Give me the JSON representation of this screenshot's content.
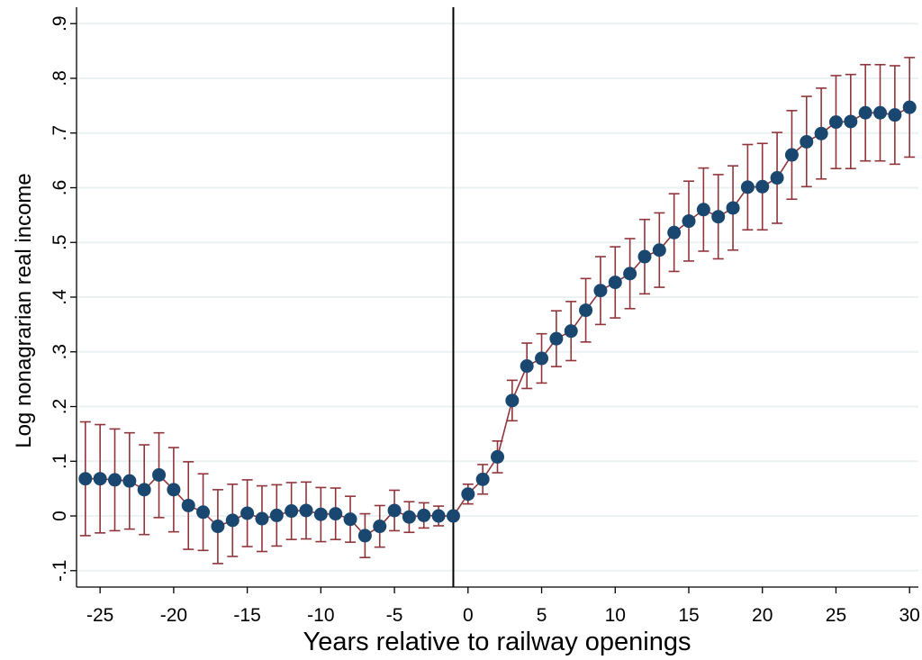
{
  "chart_data": {
    "type": "scatter",
    "xlabel": "Years relative to railway openings",
    "ylabel": "Log nonagrarian real income",
    "xlim": [
      -26.6,
      30.6
    ],
    "ylim": [
      -0.13,
      0.93
    ],
    "x_ticks": [
      -25,
      -20,
      -15,
      -10,
      -5,
      0,
      5,
      10,
      15,
      20,
      25,
      30
    ],
    "x_tick_labels": [
      "-25",
      "-20",
      "-15",
      "-10",
      "-5",
      "0",
      "5",
      "10",
      "15",
      "20",
      "25",
      "30"
    ],
    "y_ticks": [
      -0.1,
      0,
      0.1,
      0.2,
      0.3,
      0.4,
      0.5,
      0.6,
      0.7,
      0.8,
      0.9
    ],
    "y_tick_labels": [
      "-.1",
      "0",
      ".1",
      ".2",
      ".3",
      ".4",
      ".5",
      ".6",
      ".7",
      ".8",
      ".9"
    ],
    "grid": "horizontal",
    "reference_line_x": -1,
    "colors": {
      "marker": "#1a476f",
      "connector": "#90353b",
      "ci": "#90353b",
      "grid": "#eaf2f3",
      "reference_line": "#000000"
    },
    "series": [
      {
        "x": [
          -26,
          -25,
          -24,
          -23,
          -22,
          -21,
          -20,
          -19,
          -18,
          -17,
          -16,
          -15,
          -14,
          -13,
          -12,
          -11,
          -10,
          -9,
          -8,
          -7,
          -6,
          -5,
          -4,
          -3,
          -2,
          -1,
          0,
          1,
          2,
          3,
          4,
          5,
          6,
          7,
          8,
          9,
          10,
          11,
          12,
          13,
          14,
          15,
          16,
          17,
          18,
          19,
          20,
          21,
          22,
          23,
          24,
          25,
          26,
          27,
          28,
          29,
          30
        ],
        "y": [
          0.068,
          0.068,
          0.066,
          0.064,
          0.048,
          0.075,
          0.048,
          0.019,
          0.007,
          -0.019,
          -0.008,
          0.005,
          -0.005,
          0.001,
          0.009,
          0.01,
          0.003,
          0.004,
          -0.006,
          -0.036,
          -0.019,
          0.01,
          -0.002,
          0.001,
          0.0,
          0.0,
          0.04,
          0.067,
          0.108,
          0.211,
          0.274,
          0.288,
          0.324,
          0.338,
          0.376,
          0.412,
          0.427,
          0.443,
          0.474,
          0.486,
          0.518,
          0.539,
          0.56,
          0.547,
          0.563,
          0.601,
          0.602,
          0.618,
          0.66,
          0.684,
          0.699,
          0.72,
          0.721,
          0.737,
          0.737,
          0.733,
          0.747
        ],
        "ci_low": [
          -0.036,
          -0.031,
          -0.027,
          -0.024,
          -0.034,
          -0.003,
          -0.029,
          -0.061,
          -0.063,
          -0.087,
          -0.074,
          -0.056,
          -0.065,
          -0.055,
          -0.043,
          -0.042,
          -0.047,
          -0.043,
          -0.048,
          -0.076,
          -0.057,
          -0.027,
          -0.03,
          -0.022,
          -0.018,
          0.0,
          0.022,
          0.04,
          0.079,
          0.174,
          0.233,
          0.243,
          0.273,
          0.284,
          0.318,
          0.35,
          0.362,
          0.379,
          0.406,
          0.418,
          0.447,
          0.466,
          0.484,
          0.47,
          0.486,
          0.523,
          0.523,
          0.535,
          0.579,
          0.602,
          0.616,
          0.635,
          0.635,
          0.649,
          0.649,
          0.643,
          0.656
        ],
        "ci_high": [
          0.172,
          0.167,
          0.159,
          0.152,
          0.13,
          0.152,
          0.125,
          0.099,
          0.077,
          0.048,
          0.058,
          0.066,
          0.055,
          0.057,
          0.061,
          0.062,
          0.052,
          0.051,
          0.036,
          0.004,
          0.019,
          0.047,
          0.026,
          0.024,
          0.018,
          0.0,
          0.058,
          0.094,
          0.137,
          0.248,
          0.316,
          0.333,
          0.375,
          0.392,
          0.434,
          0.474,
          0.492,
          0.507,
          0.542,
          0.554,
          0.589,
          0.612,
          0.636,
          0.624,
          0.64,
          0.679,
          0.681,
          0.701,
          0.741,
          0.767,
          0.782,
          0.805,
          0.807,
          0.825,
          0.825,
          0.823,
          0.838
        ]
      }
    ]
  }
}
